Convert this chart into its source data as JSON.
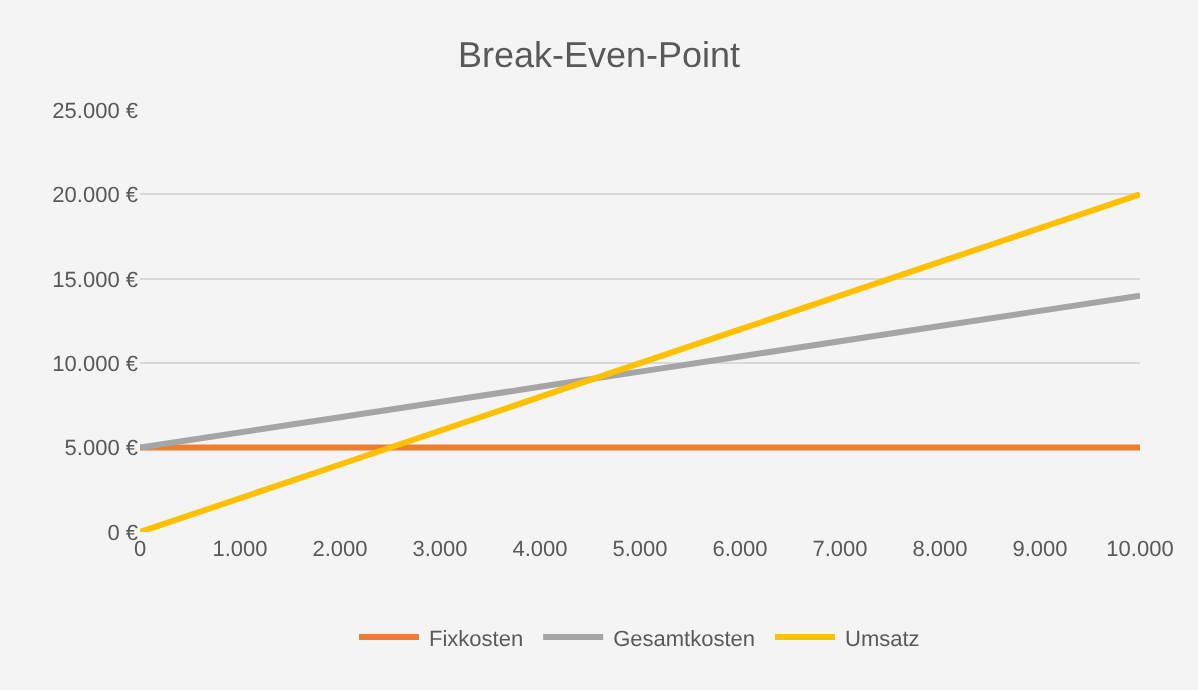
{
  "chart_data": {
    "type": "line",
    "title": "Break-Even-Point",
    "x": [
      0,
      1500,
      2000,
      3000,
      4000,
      5000,
      6000,
      7000,
      8000,
      9000,
      10000
    ],
    "series": [
      {
        "name": "Fixkosten",
        "color": "#ed7d31",
        "values": [
          5000,
          5000,
          5000,
          5000,
          5000,
          5000,
          5000,
          5000,
          5000,
          5000,
          5000
        ]
      },
      {
        "name": "Gesamtkosten",
        "color": "#a5a5a5",
        "values": [
          5000,
          6350,
          6800,
          7700,
          8600,
          9500,
          10400,
          11300,
          12200,
          13100,
          14000
        ]
      },
      {
        "name": "Umsatz",
        "color": "#ffc000",
        "values": [
          0,
          3000,
          4000,
          6000,
          8000,
          10000,
          12000,
          14000,
          16000,
          18000,
          20000
        ]
      }
    ],
    "xlim": [
      0,
      10000
    ],
    "xticks": [
      0,
      {
        "value": 1000,
        "label": "1.000"
      },
      {
        "value": 2000,
        "label": "2.000"
      },
      {
        "value": 3000,
        "label": "3.000"
      },
      {
        "value": 4000,
        "label": "4.000"
      },
      {
        "value": 5000,
        "label": "5.000"
      },
      {
        "value": 6000,
        "label": "6.000"
      },
      {
        "value": 7000,
        "label": "7.000"
      },
      {
        "value": 8000,
        "label": "8.000"
      },
      {
        "value": 9000,
        "label": "9.000"
      },
      {
        "value": 10000,
        "label": "10.000"
      }
    ],
    "ylim": [
      0,
      25000
    ],
    "yticks": [
      {
        "value": 0,
        "label": "0 €"
      },
      {
        "value": 5000,
        "label": "5.000 €"
      },
      {
        "value": 10000,
        "label": "10.000 €"
      },
      {
        "value": 15000,
        "label": "15.000 €"
      },
      {
        "value": 20000,
        "label": "20.000 €"
      },
      {
        "value": 25000,
        "label": "25.000 €"
      }
    ],
    "grid": "y",
    "legend": "bottom",
    "marker": "none",
    "line_style": "solid"
  }
}
